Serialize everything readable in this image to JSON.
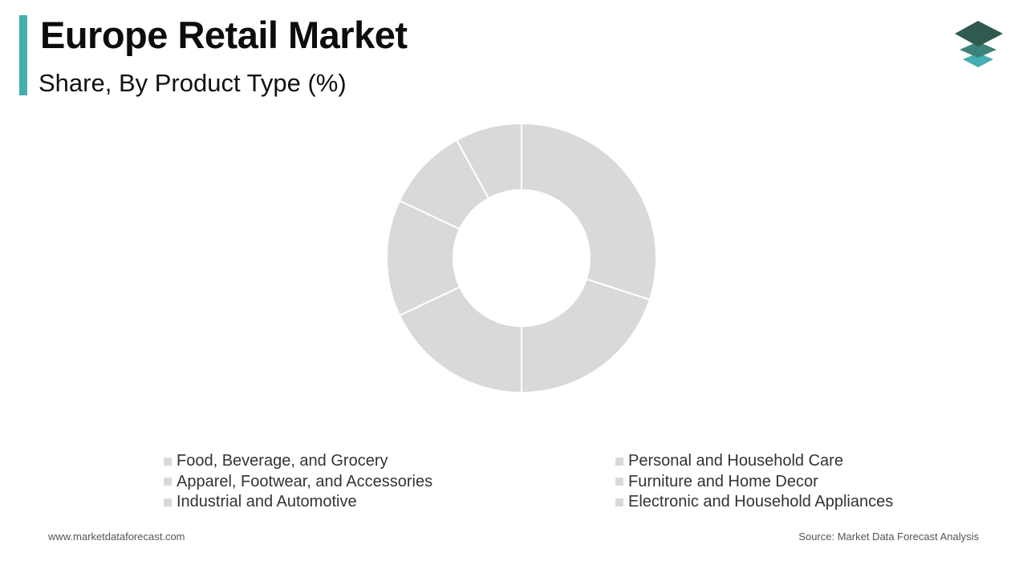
{
  "header": {
    "title": "Europe Retail Market",
    "subtitle": "Share, By Product Type (%)"
  },
  "colors": {
    "accent": "#45aeb0",
    "slice": "#d9d9d9",
    "slice_border": "#ffffff",
    "legend_swatch": "#d9d9d9"
  },
  "logo": {
    "icon": "stacked-layers-icon"
  },
  "chart_data": {
    "type": "pie",
    "variant": "donut",
    "legend_placement": "bottom",
    "categories": [
      "Food, Beverage, and Grocery",
      "Personal and Household Care",
      "Apparel, Footwear, and Accessories",
      "Furniture and Home Decor",
      "Industrial and Automotive",
      "Electronic and Household Appliances"
    ],
    "values": [
      30,
      20,
      18,
      14,
      10,
      8
    ]
  },
  "footer": {
    "website": "www.marketdataforecast.com",
    "source": "Source: Market Data Forecast Analysis"
  }
}
